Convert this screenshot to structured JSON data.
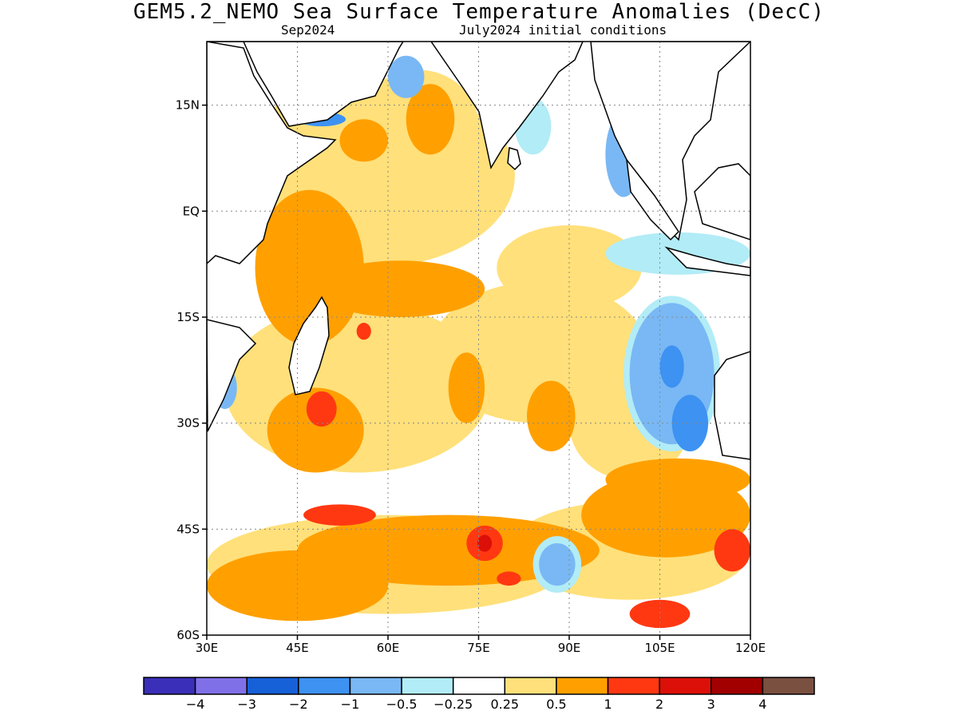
{
  "title": "GEM5.2_NEMO Sea Surface Temperature Anomalies (DecC)",
  "subtitle_left": "Sep2024",
  "subtitle_right": "July2024 initial conditions",
  "map": {
    "lon_range": [
      30,
      120
    ],
    "lat_range": [
      -60,
      24
    ],
    "lat_ticks": [
      {
        "v": 15,
        "label": "15N"
      },
      {
        "v": 0,
        "label": "EQ"
      },
      {
        "v": -15,
        "label": "15S"
      },
      {
        "v": -30,
        "label": "30S"
      },
      {
        "v": -45,
        "label": "45S"
      },
      {
        "v": -60,
        "label": "60S"
      }
    ],
    "lon_ticks": [
      {
        "v": 30,
        "label": "30E"
      },
      {
        "v": 45,
        "label": "45E"
      },
      {
        "v": 60,
        "label": "60E"
      },
      {
        "v": 75,
        "label": "75E"
      },
      {
        "v": 90,
        "label": "90E"
      },
      {
        "v": 105,
        "label": "105E"
      },
      {
        "v": 120,
        "label": "120E"
      }
    ],
    "grid": true
  },
  "colorbar": {
    "colors": [
      "#3a2fb8",
      "#8070e8",
      "#1660d8",
      "#3d92f2",
      "#79b8f4",
      "#b2ecf6",
      "#ffffff",
      "#ffe07a",
      "#ffa000",
      "#ff3812",
      "#dc1008",
      "#a20000",
      "#7a5040"
    ],
    "labels": [
      "−4",
      "−3",
      "−2",
      "−1",
      "−0.5",
      "−0.25",
      "0.25",
      "0.5",
      "1",
      "2",
      "3",
      "4"
    ]
  },
  "anomaly_regions": [
    {
      "level": "0.5",
      "color": "#ffe07a",
      "lon": 57,
      "lat": 5,
      "rx": 24,
      "ry": 13
    },
    {
      "level": "0.5",
      "color": "#ffe07a",
      "lon": 85,
      "lat": -20,
      "rx": 18,
      "ry": 10
    },
    {
      "level": "0.5",
      "color": "#ffe07a",
      "lon": 55,
      "lat": -25,
      "rx": 22,
      "ry": 12
    },
    {
      "level": "0.5",
      "color": "#ffe07a",
      "lon": 90,
      "lat": -8,
      "rx": 12,
      "ry": 6
    },
    {
      "level": "0.5",
      "color": "#ffe07a",
      "lon": 65,
      "lat": 12,
      "rx": 10,
      "ry": 8
    },
    {
      "level": "0.5",
      "color": "#ffe07a",
      "lon": 100,
      "lat": -30,
      "rx": 10,
      "ry": 8
    },
    {
      "level": "0.5",
      "color": "#ffe07a",
      "lon": 60,
      "lat": -50,
      "rx": 30,
      "ry": 7
    },
    {
      "level": "0.5",
      "color": "#ffe07a",
      "lon": 100,
      "lat": -48,
      "rx": 20,
      "ry": 7
    },
    {
      "level": "1",
      "color": "#ffa000",
      "lon": 47,
      "lat": -8,
      "rx": 9,
      "ry": 11
    },
    {
      "level": "1",
      "color": "#ffa000",
      "lon": 62,
      "lat": -11,
      "rx": 14,
      "ry": 4
    },
    {
      "level": "1",
      "color": "#ffa000",
      "lon": 67,
      "lat": 13,
      "rx": 4,
      "ry": 5
    },
    {
      "level": "1",
      "color": "#ffa000",
      "lon": 56,
      "lat": 10,
      "rx": 4,
      "ry": 3
    },
    {
      "level": "1",
      "color": "#ffa000",
      "lon": 73,
      "lat": -25,
      "rx": 3,
      "ry": 5
    },
    {
      "level": "1",
      "color": "#ffa000",
      "lon": 87,
      "lat": -29,
      "rx": 4,
      "ry": 5
    },
    {
      "level": "1",
      "color": "#ffa000",
      "lon": 48,
      "lat": -31,
      "rx": 8,
      "ry": 6
    },
    {
      "level": "1",
      "color": "#ffa000",
      "lon": 106,
      "lat": -43,
      "rx": 14,
      "ry": 6
    },
    {
      "level": "1",
      "color": "#ffa000",
      "lon": 70,
      "lat": -48,
      "rx": 25,
      "ry": 5
    },
    {
      "level": "1",
      "color": "#ffa000",
      "lon": 45,
      "lat": -53,
      "rx": 15,
      "ry": 5
    },
    {
      "level": "1",
      "color": "#ffa000",
      "lon": 108,
      "lat": -38,
      "rx": 12,
      "ry": 3
    },
    {
      "level": "2",
      "color": "#ff3812",
      "lon": 49,
      "lat": -28,
      "rx": 2.5,
      "ry": 2.5
    },
    {
      "level": "2",
      "color": "#ff3812",
      "lon": 56,
      "lat": -17,
      "rx": 1.2,
      "ry": 1.2
    },
    {
      "level": "2",
      "color": "#ff3812",
      "lon": 52,
      "lat": -43,
      "rx": 6,
      "ry": 1.5
    },
    {
      "level": "2",
      "color": "#ff3812",
      "lon": 76,
      "lat": -47,
      "rx": 3,
      "ry": 2.5
    },
    {
      "level": "2",
      "color": "#ff3812",
      "lon": 117,
      "lat": -48,
      "rx": 3,
      "ry": 3
    },
    {
      "level": "2",
      "color": "#ff3812",
      "lon": 105,
      "lat": -57,
      "rx": 5,
      "ry": 2
    },
    {
      "level": "2",
      "color": "#ff3812",
      "lon": 80,
      "lat": -52,
      "rx": 2,
      "ry": 1
    },
    {
      "level": "3",
      "color": "#dc1008",
      "lon": 76,
      "lat": -47,
      "rx": 1.2,
      "ry": 1.2
    },
    {
      "level": "-0.25",
      "color": "#b2ecf6",
      "lon": 107,
      "lat": -23,
      "rx": 8,
      "ry": 11
    },
    {
      "level": "-0.25",
      "color": "#b2ecf6",
      "lon": 88,
      "lat": -50,
      "rx": 4,
      "ry": 4
    },
    {
      "level": "-0.25",
      "color": "#b2ecf6",
      "lon": 108,
      "lat": -6,
      "rx": 12,
      "ry": 3
    },
    {
      "level": "-0.25",
      "color": "#b2ecf6",
      "lon": 84,
      "lat": 12,
      "rx": 3,
      "ry": 4
    },
    {
      "level": "-0.5",
      "color": "#79b8f4",
      "lon": 107,
      "lat": -23,
      "rx": 7,
      "ry": 10
    },
    {
      "level": "-0.5",
      "color": "#79b8f4",
      "lon": 63,
      "lat": 19,
      "rx": 3,
      "ry": 3
    },
    {
      "level": "-0.5",
      "color": "#79b8f4",
      "lon": 88,
      "lat": -50,
      "rx": 3,
      "ry": 3
    },
    {
      "level": "-0.5",
      "color": "#79b8f4",
      "lon": 33,
      "lat": -25,
      "rx": 2,
      "ry": 3
    },
    {
      "level": "-0.5",
      "color": "#79b8f4",
      "lon": 99,
      "lat": 8,
      "rx": 3,
      "ry": 6
    },
    {
      "level": "-1",
      "color": "#3d92f2",
      "lon": 110,
      "lat": -30,
      "rx": 3,
      "ry": 4
    },
    {
      "level": "-1",
      "color": "#3d92f2",
      "lon": 107,
      "lat": -22,
      "rx": 2,
      "ry": 3
    },
    {
      "level": "-1",
      "color": "#3d92f2",
      "lon": 49,
      "lat": 13,
      "rx": 4,
      "ry": 1
    }
  ]
}
